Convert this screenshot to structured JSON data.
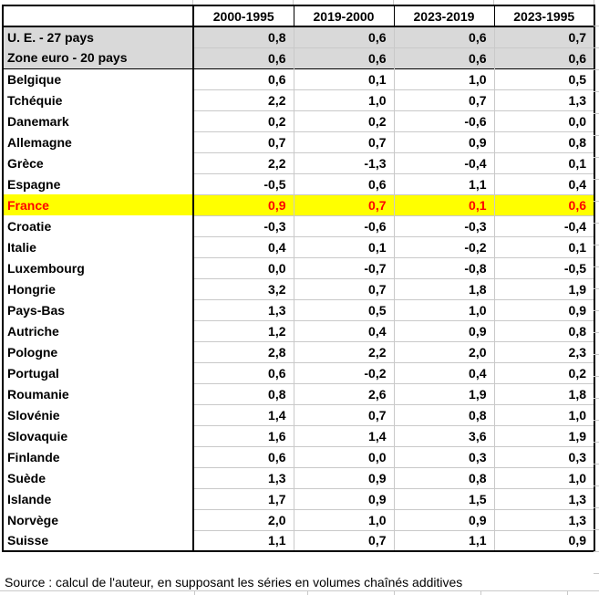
{
  "source_note": "Source : calcul de l'auteur, en supposant les séries en volumes chaînés additives",
  "colors": {
    "highlight_bg": "#ffff00",
    "highlight_text": "#ff0000",
    "aggregate_bg": "#d9d9d9",
    "gridline": "#c9c9c9"
  },
  "chart_data": {
    "type": "table",
    "title": "",
    "columns": [
      "",
      "2000-1995",
      "2019-2000",
      "2023-2019",
      "2023-1995"
    ],
    "rows": [
      {
        "label": "U. E. - 27 pays",
        "values": [
          "0,8",
          "0,6",
          "0,6",
          "0,7"
        ],
        "style": "aggregate"
      },
      {
        "label": "Zone euro - 20 pays",
        "values": [
          "0,6",
          "0,6",
          "0,6",
          "0,6"
        ],
        "style": "aggregate"
      },
      {
        "label": "Belgique",
        "values": [
          "0,6",
          "0,1",
          "1,0",
          "0,5"
        ],
        "style": "normal"
      },
      {
        "label": "Tchéquie",
        "values": [
          "2,2",
          "1,0",
          "0,7",
          "1,3"
        ],
        "style": "normal"
      },
      {
        "label": "Danemark",
        "values": [
          "0,2",
          "0,2",
          "-0,6",
          "0,0"
        ],
        "style": "normal"
      },
      {
        "label": "Allemagne",
        "values": [
          "0,7",
          "0,7",
          "0,9",
          "0,8"
        ],
        "style": "normal"
      },
      {
        "label": "Grèce",
        "values": [
          "2,2",
          "-1,3",
          "-0,4",
          "0,1"
        ],
        "style": "normal"
      },
      {
        "label": "Espagne",
        "values": [
          "-0,5",
          "0,6",
          "1,1",
          "0,4"
        ],
        "style": "normal"
      },
      {
        "label": "France",
        "values": [
          "0,9",
          "0,7",
          "0,1",
          "0,6"
        ],
        "style": "highlight"
      },
      {
        "label": "Croatie",
        "values": [
          "-0,3",
          "-0,6",
          "-0,3",
          "-0,4"
        ],
        "style": "normal"
      },
      {
        "label": "Italie",
        "values": [
          "0,4",
          "0,1",
          "-0,2",
          "0,1"
        ],
        "style": "normal"
      },
      {
        "label": "Luxembourg",
        "values": [
          "0,0",
          "-0,7",
          "-0,8",
          "-0,5"
        ],
        "style": "normal"
      },
      {
        "label": "Hongrie",
        "values": [
          "3,2",
          "0,7",
          "1,8",
          "1,9"
        ],
        "style": "normal"
      },
      {
        "label": "Pays-Bas",
        "values": [
          "1,3",
          "0,5",
          "1,0",
          "0,9"
        ],
        "style": "normal"
      },
      {
        "label": "Autriche",
        "values": [
          "1,2",
          "0,4",
          "0,9",
          "0,8"
        ],
        "style": "normal"
      },
      {
        "label": "Pologne",
        "values": [
          "2,8",
          "2,2",
          "2,0",
          "2,3"
        ],
        "style": "normal"
      },
      {
        "label": "Portugal",
        "values": [
          "0,6",
          "-0,2",
          "0,4",
          "0,2"
        ],
        "style": "normal"
      },
      {
        "label": "Roumanie",
        "values": [
          "0,8",
          "2,6",
          "1,9",
          "1,8"
        ],
        "style": "normal"
      },
      {
        "label": "Slovénie",
        "values": [
          "1,4",
          "0,7",
          "0,8",
          "1,0"
        ],
        "style": "normal"
      },
      {
        "label": "Slovaquie",
        "values": [
          "1,6",
          "1,4",
          "3,6",
          "1,9"
        ],
        "style": "normal"
      },
      {
        "label": "Finlande",
        "values": [
          "0,6",
          "0,0",
          "0,3",
          "0,3"
        ],
        "style": "normal"
      },
      {
        "label": "Suède",
        "values": [
          "1,3",
          "0,9",
          "0,8",
          "1,0"
        ],
        "style": "normal"
      },
      {
        "label": "Islande",
        "values": [
          "1,7",
          "0,9",
          "1,5",
          "1,3"
        ],
        "style": "normal"
      },
      {
        "label": "Norvège",
        "values": [
          "2,0",
          "1,0",
          "0,9",
          "1,3"
        ],
        "style": "normal"
      },
      {
        "label": "Suisse",
        "values": [
          "1,1",
          "0,7",
          "1,1",
          "0,9"
        ],
        "style": "normal"
      }
    ]
  }
}
